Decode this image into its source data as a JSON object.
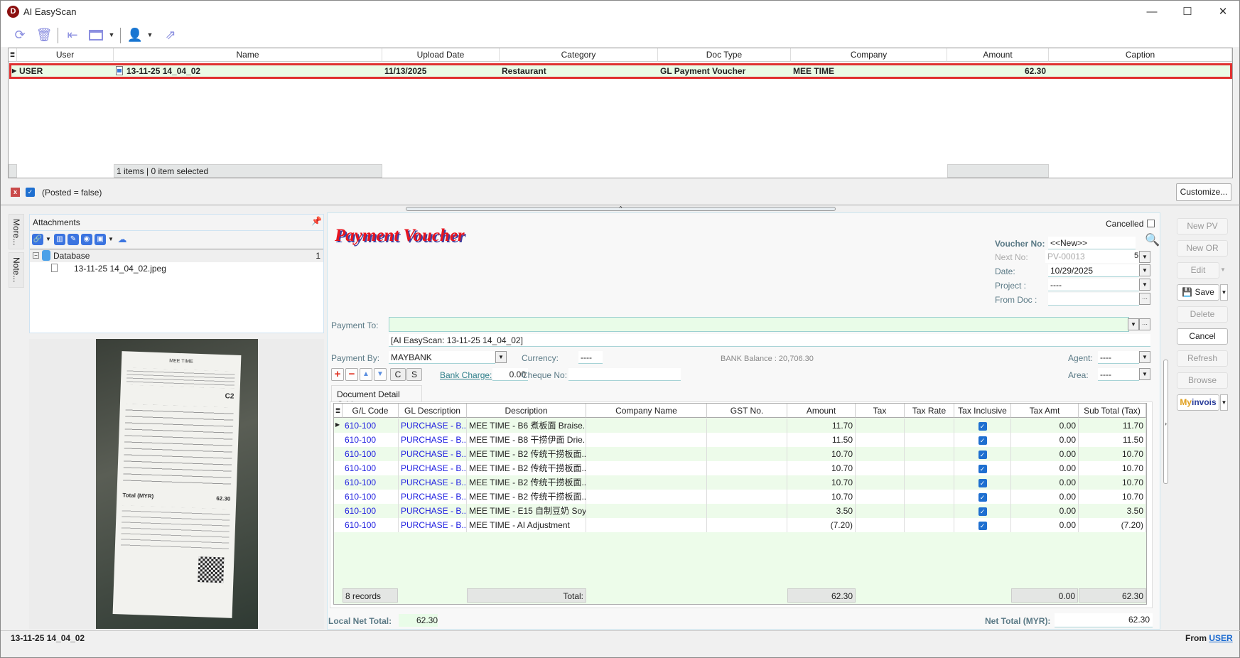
{
  "window": {
    "title": "AI EasyScan",
    "logo_letter": "D",
    "minimize": "—",
    "maximize": "☐",
    "close": "✕"
  },
  "toolbar": {
    "icons": [
      "refresh-icon",
      "delete-icon",
      "collapse-panel-icon",
      "layout-icon",
      "user-icon",
      "export-icon"
    ]
  },
  "doc_grid": {
    "columns": [
      "User",
      "Name",
      "Upload Date",
      "Category",
      "Doc Type",
      "Company",
      "Amount",
      "Caption"
    ],
    "rows": [
      {
        "user": "USER",
        "name": "13-11-25 14_04_02",
        "upload_date": "11/13/2025",
        "category": "Restaurant",
        "doc_type": "GL Payment Voucher",
        "company": "MEE TIME",
        "amount": "62.30",
        "caption": ""
      }
    ],
    "footer": "1 items |  0 item selected"
  },
  "filter": {
    "text": "(Posted = false)",
    "customize": "Customize..."
  },
  "side_tabs": [
    "More...",
    "Note..."
  ],
  "attachments": {
    "title": "Attachments",
    "group": "Database",
    "group_count": "1",
    "file": "13-11-25 14_04_02.jpeg"
  },
  "receipt": {
    "shop": "MEE TIME",
    "order": "C2",
    "total_label": "Total (MYR)",
    "total": "62.30"
  },
  "voucher": {
    "title": "Payment Voucher",
    "cancelled_label": "Cancelled",
    "cancelled": false,
    "voucher_no_label": "Voucher No:",
    "voucher_no": "<<New>>",
    "next_no_label": "Next No:",
    "next_no": "PV-00013",
    "next_no_suffix": "5",
    "date_label": "Date:",
    "date": "10/29/2025",
    "project_label": "Project :",
    "project": "----",
    "from_doc_label": "From Doc :",
    "from_doc": "",
    "payment_to_label": "Payment To:",
    "payment_to": "",
    "payment_to_desc": "[AI EasyScan: 13-11-25 14_04_02]",
    "payment_by_label": "Payment By:",
    "payment_by": "MAYBANK",
    "currency_label": "Currency:",
    "currency": "----",
    "bank_balance": "BANK Balance :  20,706.30",
    "agent_label": "Agent:",
    "agent": "----",
    "area_label": "Area:",
    "area": "----",
    "bank_charge_label": "Bank Charge:",
    "bank_charge": "0.00",
    "cheque_label": "Cheque No:",
    "cheque_no": "",
    "c_btn": "C",
    "s_btn": "S",
    "tab": "Document Detail Grid",
    "local_net_total_label": "Local Net Total:",
    "local_net_total": "62.30",
    "net_total_label": "Net Total (MYR):",
    "net_total": "62.30"
  },
  "detail_grid": {
    "columns": [
      "G/L Code",
      "GL Description",
      "Description",
      "Company Name",
      "GST No.",
      "Amount",
      "Tax",
      "Tax Rate",
      "Tax Inclusive",
      "Tax Amt",
      "Sub Total (Tax)"
    ],
    "rows": [
      [
        "610-100",
        "PURCHASE - B...",
        "MEE TIME - B6 煮板面 Braise...",
        "",
        "",
        "11.70",
        "",
        "",
        true,
        "0.00",
        "11.70"
      ],
      [
        "610-100",
        "PURCHASE - B...",
        "MEE TIME - B8 干捞伊面 Drie...",
        "",
        "",
        "11.50",
        "",
        "",
        true,
        "0.00",
        "11.50"
      ],
      [
        "610-100",
        "PURCHASE - B...",
        "MEE TIME - B2 传统干捞板面...",
        "",
        "",
        "10.70",
        "",
        "",
        true,
        "0.00",
        "10.70"
      ],
      [
        "610-100",
        "PURCHASE - B...",
        "MEE TIME - B2 传统干捞板面...",
        "",
        "",
        "10.70",
        "",
        "",
        true,
        "0.00",
        "10.70"
      ],
      [
        "610-100",
        "PURCHASE - B...",
        "MEE TIME - B2 传统干捞板面...",
        "",
        "",
        "10.70",
        "",
        "",
        true,
        "0.00",
        "10.70"
      ],
      [
        "610-100",
        "PURCHASE - B...",
        "MEE TIME - B2 传统干捞板面...",
        "",
        "",
        "10.70",
        "",
        "",
        true,
        "0.00",
        "10.70"
      ],
      [
        "610-100",
        "PURCHASE - B...",
        "MEE TIME - E15 自制豆奶 Soy...",
        "",
        "",
        "3.50",
        "",
        "",
        true,
        "0.00",
        "3.50"
      ],
      [
        "610-100",
        "PURCHASE - B...",
        "MEE TIME - AI Adjustment",
        "",
        "",
        "(7.20)",
        "",
        "",
        true,
        "0.00",
        "(7.20)"
      ]
    ],
    "records": "8 records",
    "total_label": "Total:",
    "total_amount": "62.30",
    "total_tax": "0.00",
    "total_sub": "62.30"
  },
  "actions": {
    "new_pv": "New PV",
    "new_or": "New OR",
    "edit": "Edit",
    "save": "Save",
    "delete": "Delete",
    "cancel": "Cancel",
    "refresh": "Refresh",
    "browse": "Browse",
    "myinvois_a": "My",
    "myinvois_b": "invois"
  },
  "status": {
    "left": "13-11-25 14_04_02",
    "from": "From",
    "from_user": "USER"
  },
  "colors": {
    "highlight_border": "#e03030",
    "row_green": "#eafbe6",
    "link_blue": "#2020e0",
    "title_red": "#e8141e"
  }
}
